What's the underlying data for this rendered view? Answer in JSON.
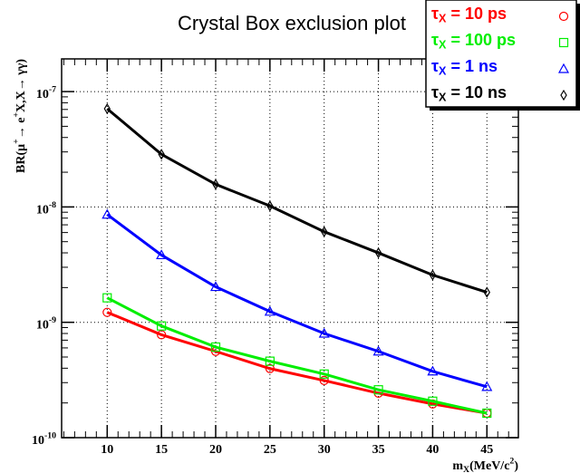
{
  "chart_data": {
    "type": "line",
    "title": "Crystal Box exclusion plot",
    "x_label": "m_{X}(MeV/c^{2})",
    "y_label": "BR(μ^{+}→ e^{+}X,X→ γγ)",
    "log_y": true,
    "grid": true,
    "x": [
      10,
      15,
      20,
      25,
      30,
      35,
      40,
      45
    ],
    "xlim": [
      5.8,
      47.9
    ],
    "xticks": [
      10,
      15,
      20,
      25,
      30,
      35,
      40,
      45
    ],
    "ylim": [
      1e-10,
      1.92e-07
    ],
    "yticks": [
      {
        "value": 1e-10,
        "label": "10^{-10}"
      },
      {
        "value": 1e-09,
        "label": "10^{-9}"
      },
      {
        "value": 1e-08,
        "label": "10^{-8}"
      },
      {
        "value": 1e-07,
        "label": "10^{-7}"
      }
    ],
    "series": [
      {
        "name": "τ_{X} = 10 ps",
        "color": "#ff0000",
        "marker": "circle",
        "values": [
          1.22e-09,
          7.8e-10,
          5.6e-10,
          3.97e-10,
          3.13e-10,
          2.43e-10,
          1.96e-10,
          1.63e-10
        ]
      },
      {
        "name": "τ_{X} = 100 ps",
        "color": "#00ee00",
        "marker": "square",
        "values": [
          1.63e-09,
          9.3e-10,
          6.1e-10,
          4.6e-10,
          3.56e-10,
          2.6e-10,
          2.07e-10,
          1.63e-10
        ]
      },
      {
        "name": "τ_{X} = 1 ns",
        "color": "#0000ff",
        "marker": "triangle",
        "values": [
          8.6e-09,
          3.83e-09,
          2.03e-09,
          1.24e-09,
          8e-10,
          5.6e-10,
          3.76e-10,
          2.76e-10
        ]
      },
      {
        "name": "τ_{X} = 10 ns",
        "color": "#000000",
        "marker": "diamond",
        "values": [
          7.1e-08,
          2.86e-08,
          1.57e-08,
          1.02e-08,
          6.1e-09,
          4e-09,
          2.57e-09,
          1.82e-09
        ]
      }
    ]
  }
}
